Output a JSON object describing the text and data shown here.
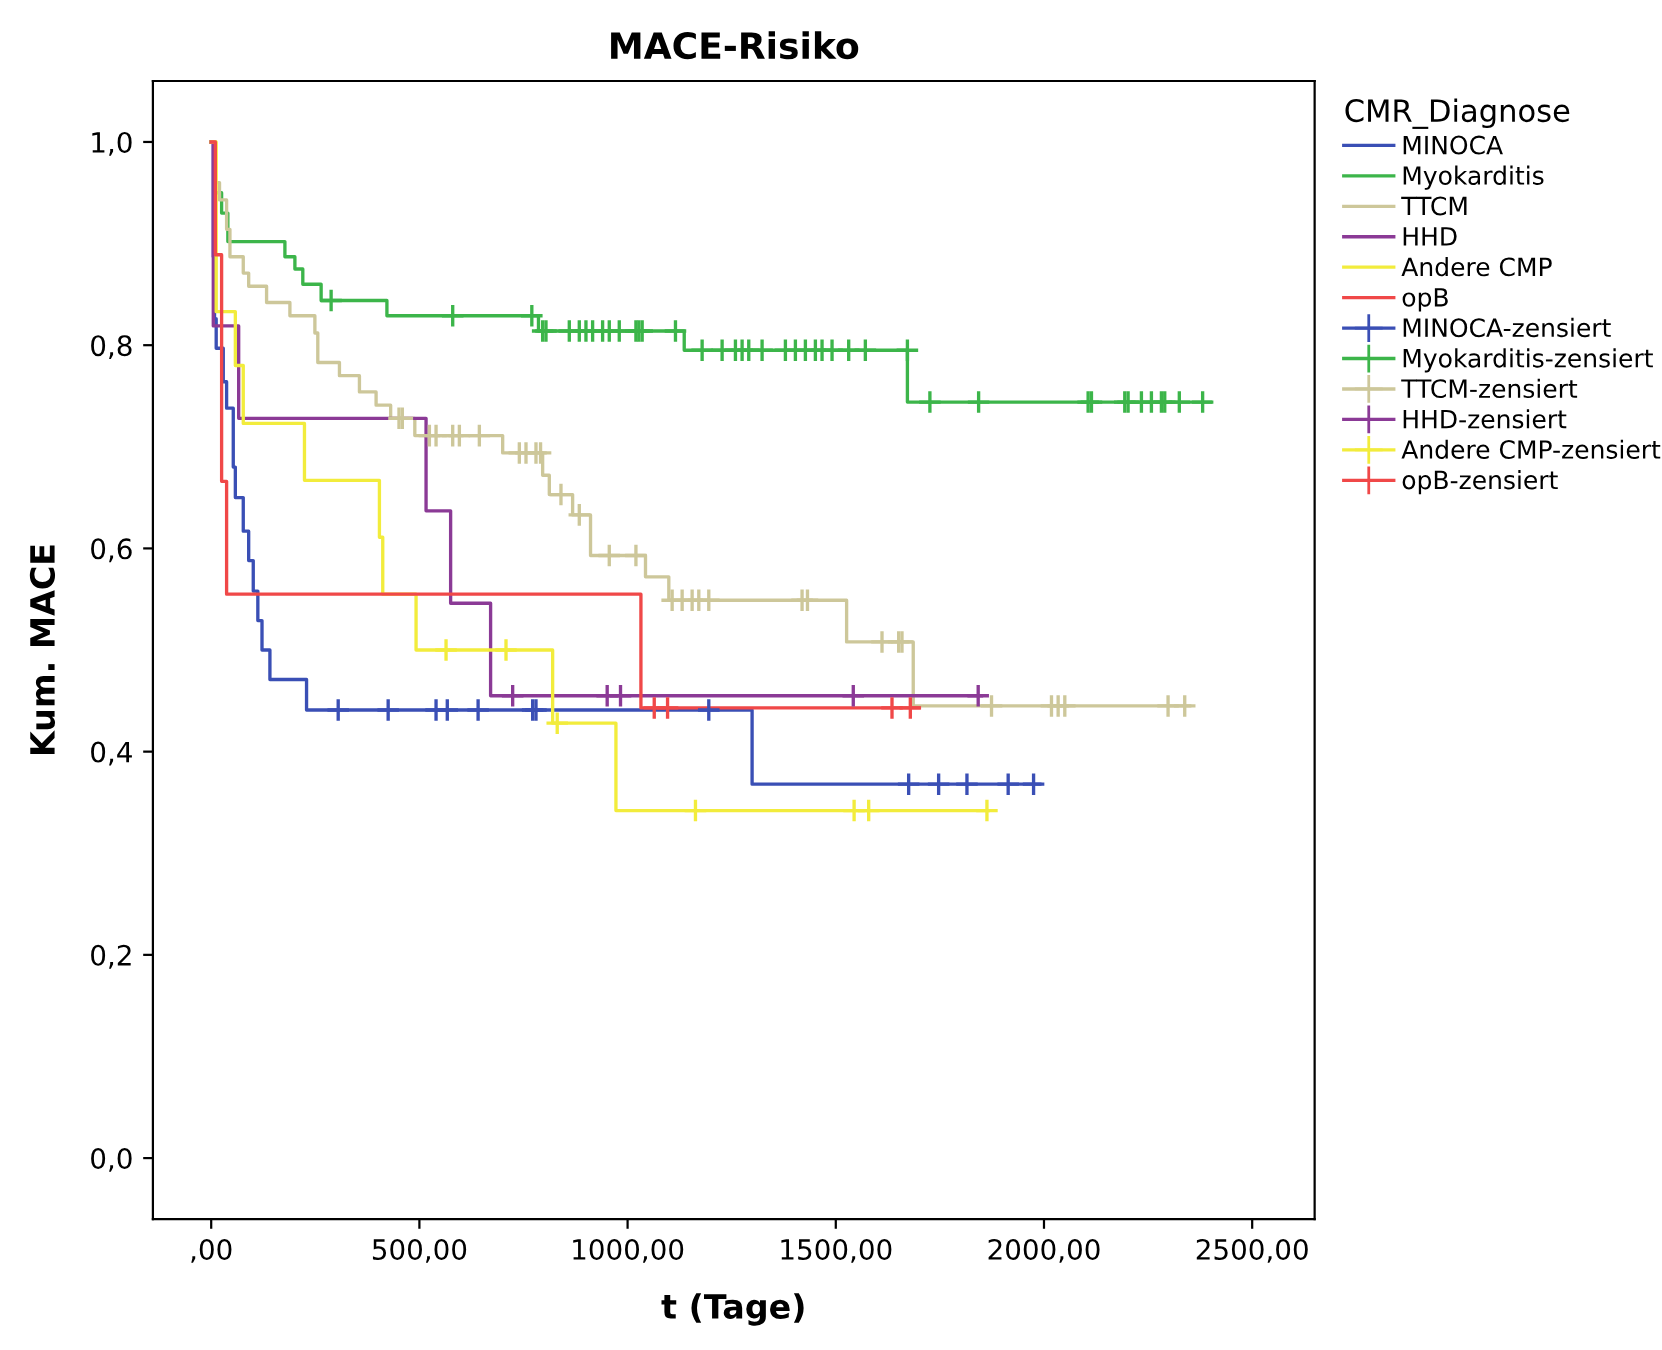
{
  "chart_data": {
    "type": "step",
    "title": "MACE-Risiko",
    "xlabel": "t (Tage)",
    "ylabel": "Kum. MACE",
    "legend_title": "CMR_Diagnose",
    "legend": "right",
    "grid": false,
    "xlim": [
      -140,
      2650
    ],
    "ylim": [
      -0.06,
      1.06
    ],
    "xticks": [
      {
        "value": 0,
        "label": ",00"
      },
      {
        "value": 500,
        "label": "500,00"
      },
      {
        "value": 1000,
        "label": "1000,00"
      },
      {
        "value": 1500,
        "label": "1500,00"
      },
      {
        "value": 2000,
        "label": "2000,00"
      },
      {
        "value": 2500,
        "label": "2500,00"
      }
    ],
    "yticks": [
      {
        "value": 0,
        "label": "0,0"
      },
      {
        "value": 0.2,
        "label": "0,2"
      },
      {
        "value": 0.4,
        "label": "0,4"
      },
      {
        "value": 0.6,
        "label": "0,6"
      },
      {
        "value": 0.8,
        "label": "0,8"
      },
      {
        "value": 1.0,
        "label": "1,0"
      }
    ],
    "series": [
      {
        "name": "MINOCA",
        "color": "#3a4fb5",
        "x": [
          0,
          5,
          8,
          12,
          29,
          37,
          53,
          58,
          77,
          90,
          101,
          112,
          122,
          141,
          229,
          1299,
          1990
        ],
        "values": [
          1.0,
          0.887,
          0.826,
          0.797,
          0.764,
          0.738,
          0.68,
          0.65,
          0.617,
          0.588,
          0.558,
          0.529,
          0.5,
          0.471,
          0.441,
          0.368,
          0.368
        ]
      },
      {
        "name": "Myokarditis",
        "color": "#3cb54a",
        "x": [
          0,
          10,
          25,
          40,
          177,
          201,
          220,
          264,
          422,
          786,
          1136,
          1672,
          2400
        ],
        "values": [
          1.0,
          0.95,
          0.93,
          0.902,
          0.887,
          0.875,
          0.86,
          0.844,
          0.829,
          0.814,
          0.795,
          0.744,
          0.744
        ]
      },
      {
        "name": "TTCM",
        "color": "#cdc79a",
        "x": [
          0,
          10,
          20,
          37,
          45,
          77,
          90,
          133,
          189,
          249,
          256,
          308,
          356,
          396,
          431,
          489,
          700,
          796,
          812,
          868,
          911,
          1043,
          1099,
          1526,
          1686,
          2350
        ],
        "values": [
          1.0,
          0.96,
          0.943,
          0.914,
          0.887,
          0.871,
          0.858,
          0.842,
          0.829,
          0.812,
          0.783,
          0.77,
          0.754,
          0.741,
          0.728,
          0.711,
          0.694,
          0.672,
          0.653,
          0.633,
          0.593,
          0.572,
          0.549,
          0.508,
          0.445,
          0.445
        ]
      },
      {
        "name": "HHD",
        "color": "#8b3a96",
        "x": [
          0,
          5,
          66,
          516,
          575,
          671,
          1850
        ],
        "values": [
          1.0,
          0.819,
          0.728,
          0.637,
          0.546,
          0.455,
          0.455
        ]
      },
      {
        "name": "Andere CMP",
        "color": "#f2ec3c",
        "x": [
          0,
          12,
          58,
          77,
          224,
          404,
          412,
          492,
          820,
          972,
          1866
        ],
        "values": [
          1.0,
          0.833,
          0.78,
          0.723,
          0.667,
          0.611,
          0.555,
          0.5,
          0.428,
          0.342,
          0.342
        ]
      },
      {
        "name": "opB",
        "color": "#f04848",
        "x": [
          0,
          10,
          25,
          37,
          1032,
          1700
        ],
        "values": [
          1.0,
          0.889,
          0.666,
          0.555,
          0.443,
          0.443
        ]
      },
      {
        "name": "MINOCA-zensiert",
        "type": "scatter",
        "marker": "cross",
        "color": "#3a4fb5",
        "x": [
          305,
          425,
          540,
          567,
          641,
          772,
          780,
          1195,
          1675,
          1747,
          1815,
          1914,
          1975
        ],
        "values": [
          0.441,
          0.441,
          0.441,
          0.441,
          0.441,
          0.441,
          0.441,
          0.441,
          0.368,
          0.368,
          0.368,
          0.368,
          0.368
        ]
      },
      {
        "name": "Myokarditis-zensiert",
        "type": "scatter",
        "marker": "cross",
        "color": "#3cb54a",
        "x": [
          288,
          580,
          770,
          796,
          804,
          860,
          884,
          900,
          916,
          940,
          956,
          980,
          1020,
          1027,
          1035,
          1115,
          1179,
          1227,
          1259,
          1275,
          1291,
          1323,
          1379,
          1403,
          1427,
          1451,
          1467,
          1491,
          1531,
          1571,
          1672,
          1726,
          1843,
          2106,
          2114,
          2194,
          2202,
          2234,
          2258,
          2282,
          2290,
          2325,
          2381
        ],
        "values": [
          0.844,
          0.829,
          0.829,
          0.814,
          0.814,
          0.814,
          0.814,
          0.814,
          0.814,
          0.814,
          0.814,
          0.814,
          0.814,
          0.814,
          0.814,
          0.814,
          0.795,
          0.795,
          0.795,
          0.795,
          0.795,
          0.795,
          0.795,
          0.795,
          0.795,
          0.795,
          0.795,
          0.795,
          0.795,
          0.795,
          0.795,
          0.744,
          0.744,
          0.744,
          0.744,
          0.744,
          0.744,
          0.744,
          0.744,
          0.744,
          0.744,
          0.744,
          0.744
        ]
      },
      {
        "name": "TTCM-zensiert",
        "type": "scatter",
        "marker": "cross",
        "color": "#cdc79a",
        "x": [
          451,
          459,
          524,
          540,
          580,
          596,
          644,
          740,
          756,
          780,
          791,
          840,
          884,
          956,
          1020,
          1107,
          1131,
          1155,
          1171,
          1195,
          1419,
          1432,
          1611,
          1651,
          1659,
          1874,
          2018,
          2034,
          2050,
          2298,
          2338
        ],
        "values": [
          0.728,
          0.728,
          0.711,
          0.711,
          0.711,
          0.711,
          0.711,
          0.694,
          0.694,
          0.694,
          0.694,
          0.653,
          0.633,
          0.593,
          0.593,
          0.549,
          0.549,
          0.549,
          0.549,
          0.549,
          0.549,
          0.549,
          0.508,
          0.508,
          0.508,
          0.445,
          0.445,
          0.445,
          0.445,
          0.445,
          0.445
        ]
      },
      {
        "name": "HHD-zensiert",
        "type": "scatter",
        "marker": "cross",
        "color": "#8b3a96",
        "x": [
          724,
          951,
          983,
          1542,
          1842
        ],
        "values": [
          0.455,
          0.455,
          0.455,
          0.455,
          0.455
        ]
      },
      {
        "name": "Andere CMP-zensiert",
        "type": "scatter",
        "marker": "cross",
        "color": "#f2ec3c",
        "x": [
          564,
          708,
          831,
          1163,
          1544,
          1579,
          1863
        ],
        "values": [
          0.5,
          0.5,
          0.428,
          0.342,
          0.342,
          0.342,
          0.342
        ]
      },
      {
        "name": "opB-zensiert",
        "type": "scatter",
        "marker": "cross",
        "color": "#f04848",
        "x": [
          1064,
          1096,
          1635,
          1679
        ],
        "values": [
          0.443,
          0.443,
          0.443,
          0.443
        ]
      }
    ],
    "line_style": "solid"
  }
}
